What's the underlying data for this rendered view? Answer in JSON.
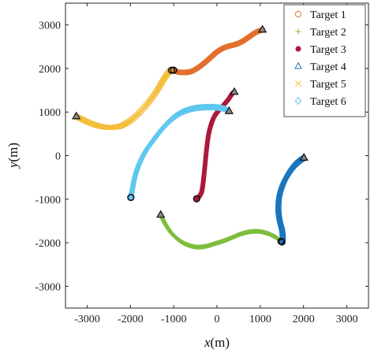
{
  "chart_data": {
    "type": "scatter",
    "title": "",
    "xlabel": {
      "var": "x",
      "unit": "(m)"
    },
    "ylabel": {
      "var": "y",
      "unit": "(m)"
    },
    "xlim": [
      -3500,
      3500
    ],
    "ylim": [
      -3500,
      3500
    ],
    "xticks": [
      -3000,
      -2000,
      -1000,
      0,
      1000,
      2000,
      3000
    ],
    "yticks": [
      -3000,
      -2000,
      -1000,
      0,
      1000,
      2000,
      3000
    ],
    "grid": false,
    "legend_position": "top-right",
    "series": [
      {
        "name": "Target 1",
        "marker": "circle",
        "color": "#E2702E",
        "points": [
          [
            -1000,
            1960
          ],
          [
            -900,
            1920
          ],
          [
            -750,
            1910
          ],
          [
            -600,
            1930
          ],
          [
            -450,
            2010
          ],
          [
            -300,
            2120
          ],
          [
            -150,
            2250
          ],
          [
            0,
            2380
          ],
          [
            150,
            2470
          ],
          [
            300,
            2520
          ],
          [
            450,
            2560
          ],
          [
            600,
            2630
          ],
          [
            750,
            2730
          ],
          [
            900,
            2830
          ],
          [
            1050,
            2890
          ]
        ],
        "start": [
          -1000,
          1960
        ],
        "end": [
          1050,
          2890
        ]
      },
      {
        "name": "Target 2",
        "marker": "plus",
        "color": "#7DBE3D",
        "points": [
          [
            -1300,
            -1360
          ],
          [
            -1200,
            -1560
          ],
          [
            -1050,
            -1780
          ],
          [
            -850,
            -1960
          ],
          [
            -650,
            -2060
          ],
          [
            -450,
            -2100
          ],
          [
            -250,
            -2080
          ],
          [
            -50,
            -2020
          ],
          [
            150,
            -1960
          ],
          [
            350,
            -1880
          ],
          [
            550,
            -1800
          ],
          [
            750,
            -1750
          ],
          [
            950,
            -1740
          ],
          [
            1150,
            -1780
          ],
          [
            1350,
            -1870
          ],
          [
            1480,
            -1970
          ]
        ],
        "start": [
          1480,
          -1970
        ],
        "end": [
          -1300,
          -1360
        ]
      },
      {
        "name": "Target 3",
        "marker": "filled-dot",
        "color": "#AC1A3C",
        "points": [
          [
            -470,
            -990
          ],
          [
            -420,
            -950
          ],
          [
            -360,
            -850
          ],
          [
            -330,
            -700
          ],
          [
            -300,
            -450
          ],
          [
            -270,
            -150
          ],
          [
            -240,
            150
          ],
          [
            -200,
            450
          ],
          [
            -140,
            700
          ],
          [
            -60,
            900
          ],
          [
            50,
            1050
          ],
          [
            170,
            1180
          ],
          [
            270,
            1300
          ],
          [
            350,
            1420
          ],
          [
            400,
            1460
          ]
        ],
        "start": [
          -470,
          -990
        ],
        "end": [
          400,
          1460
        ]
      },
      {
        "name": "Target 4",
        "marker": "triangle",
        "color": "#1B74BC",
        "points": [
          [
            1500,
            -1980
          ],
          [
            1520,
            -1840
          ],
          [
            1500,
            -1650
          ],
          [
            1450,
            -1450
          ],
          [
            1420,
            -1200
          ],
          [
            1440,
            -900
          ],
          [
            1520,
            -630
          ],
          [
            1640,
            -400
          ],
          [
            1780,
            -220
          ],
          [
            1910,
            -110
          ],
          [
            2010,
            -50
          ]
        ],
        "start": [
          1500,
          -1980
        ],
        "end": [
          2010,
          -50
        ]
      },
      {
        "name": "Target 5",
        "marker": "x",
        "color": "#F4BE3B",
        "points": [
          [
            -3250,
            900
          ],
          [
            -3050,
            800
          ],
          [
            -2800,
            700
          ],
          [
            -2550,
            650
          ],
          [
            -2300,
            660
          ],
          [
            -2100,
            740
          ],
          [
            -1850,
            930
          ],
          [
            -1600,
            1200
          ],
          [
            -1400,
            1470
          ],
          [
            -1250,
            1720
          ],
          [
            -1120,
            1910
          ],
          [
            -1050,
            1960
          ]
        ],
        "start": [
          -1050,
          1960
        ],
        "end": [
          -3250,
          900
        ]
      },
      {
        "name": "Target 6",
        "marker": "diamond",
        "color": "#5EC7EF",
        "points": [
          [
            -1990,
            -960
          ],
          [
            -1960,
            -800
          ],
          [
            -1900,
            -500
          ],
          [
            -1800,
            -200
          ],
          [
            -1650,
            100
          ],
          [
            -1450,
            380
          ],
          [
            -1250,
            630
          ],
          [
            -1030,
            850
          ],
          [
            -800,
            1000
          ],
          [
            -550,
            1080
          ],
          [
            -300,
            1110
          ],
          [
            -50,
            1110
          ],
          [
            150,
            1080
          ],
          [
            280,
            1020
          ]
        ],
        "start": [
          -1990,
          -960
        ],
        "end": [
          280,
          1020
        ]
      }
    ]
  }
}
